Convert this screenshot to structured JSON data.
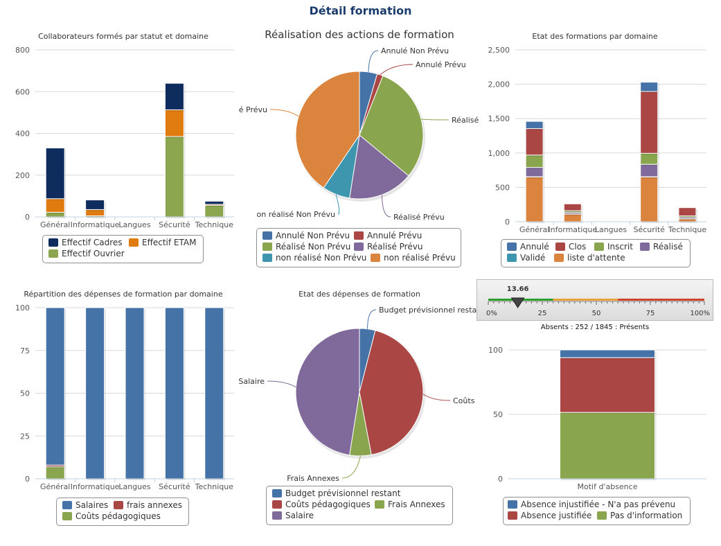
{
  "page": {
    "title": "Détail formation"
  },
  "chart_data": [
    {
      "id": "c1",
      "type": "bar",
      "stacked": true,
      "title": "Collaborateurs formés par statut et domaine",
      "categories": [
        "Général",
        "Informatique",
        "Langues",
        "Sécurité",
        "Technique"
      ],
      "ylim": [
        0,
        800
      ],
      "yticks": [
        "0",
        "200",
        "400",
        "600",
        "800"
      ],
      "grid": true,
      "legend_position": "bottom",
      "series": [
        {
          "name": "Effectif Ouvrier",
          "color": "#8ba64e",
          "values": [
            22,
            5,
            0,
            385,
            55
          ]
        },
        {
          "name": "Effectif ETAM",
          "color": "#e07b10",
          "values": [
            65,
            30,
            0,
            128,
            5
          ]
        },
        {
          "name": "Effectif Cadres",
          "color": "#0e2c5d",
          "values": [
            243,
            46,
            0,
            127,
            15
          ]
        }
      ],
      "legend": [
        "Effectif Cadres",
        "Effectif ETAM",
        "Effectif Ouvrier"
      ]
    },
    {
      "id": "c2",
      "type": "pie",
      "title": "Réalisation des actions de formation",
      "slices": [
        {
          "name": "Annulé Non Prévu",
          "label": "Annulé Non Prévu",
          "value": 4.5,
          "color": "#4572a7"
        },
        {
          "name": "Annulé Prévu",
          "label": "Annulé Prévu",
          "value": 1.5,
          "color": "#aa4643"
        },
        {
          "name": "Réalisé Non Prévu",
          "label": "Réalisé",
          "value": 30,
          "color": "#89a54e"
        },
        {
          "name": "Réalisé Prévu",
          "label": "Réalisé Prévu",
          "value": 16.5,
          "color": "#80699b"
        },
        {
          "name": "non réalisé Non Prévu",
          "label": "on réalisé Non Prévu",
          "value": 7,
          "color": "#3d96ae"
        },
        {
          "name": "non réalisé Prévu",
          "label": "é Prévu",
          "value": 40.5,
          "color": "#db843d"
        }
      ],
      "legend": [
        "Annulé Non Prévu",
        "Annulé Prévu",
        "Réalisé Non Prévu",
        "Réalisé Prévu",
        "non réalisé Non Prévu",
        "non réalisé Prévu"
      ]
    },
    {
      "id": "c3",
      "type": "bar",
      "stacked": true,
      "title": "Etat des formations par domaine",
      "categories": [
        "Général",
        "Informatique",
        "Langues",
        "Sécurité",
        "Technique"
      ],
      "ylim": [
        0,
        2500
      ],
      "yticks": [
        "0",
        "500",
        "1,000",
        "1,500",
        "2,000",
        "2,500"
      ],
      "grid": true,
      "legend_position": "bottom",
      "series": [
        {
          "name": "liste d'attente",
          "color": "#db843d",
          "values": [
            650,
            110,
            0,
            650,
            40
          ]
        },
        {
          "name": "Validé",
          "color": "#3d96ae",
          "values": [
            5,
            5,
            0,
            5,
            5
          ]
        },
        {
          "name": "Réalisé",
          "color": "#80699b",
          "values": [
            135,
            20,
            0,
            180,
            20
          ]
        },
        {
          "name": "Inscrit",
          "color": "#89a54e",
          "values": [
            180,
            25,
            0,
            160,
            20
          ]
        },
        {
          "name": "Clos",
          "color": "#aa4643",
          "values": [
            385,
            100,
            0,
            900,
            120
          ]
        },
        {
          "name": "Annulé",
          "color": "#4572a7",
          "values": [
            105,
            0,
            0,
            135,
            0
          ]
        }
      ],
      "legend": [
        "Annulé",
        "Clos",
        "Inscrit",
        "Réalisé",
        "Validé",
        "liste d'attente"
      ]
    },
    {
      "id": "c4",
      "type": "bar",
      "stacked": true,
      "title": "Répartition des dépenses de formation par domaine",
      "categories": [
        "Général",
        "Informatique",
        "Langues",
        "Sécurité",
        "Technique"
      ],
      "ylim": [
        0,
        100
      ],
      "yticks": [
        "0",
        "25",
        "50",
        "75",
        "100"
      ],
      "grid": true,
      "legend_position": "bottom",
      "series": [
        {
          "name": "Coûts pédagogiques",
          "color": "#89a54e",
          "values": [
            7,
            0,
            0,
            0,
            0
          ]
        },
        {
          "name": "frais annexes",
          "color": "#aa4643",
          "values": [
            1,
            0,
            0,
            0,
            0
          ]
        },
        {
          "name": "Salaires",
          "color": "#4572a7",
          "values": [
            92,
            100,
            100,
            100,
            100
          ]
        }
      ],
      "legend": [
        "Salaires",
        "frais annexes",
        "Coûts pédagogiques"
      ]
    },
    {
      "id": "c5",
      "type": "pie",
      "title": "Etat des dépenses de formation",
      "slices": [
        {
          "name": "Budget prévisionnel restant",
          "label": "Budget prévisionnel restan",
          "value": 4,
          "color": "#4572a7"
        },
        {
          "name": "Coûts",
          "label": "Coûts",
          "value": 43,
          "color": "#aa4643"
        },
        {
          "name": "Frais Annexes",
          "label": "Frais Annexes",
          "value": 5.5,
          "color": "#89a54e"
        },
        {
          "name": "Salaire",
          "label": "Salaire",
          "value": 47.5,
          "color": "#80699b"
        }
      ],
      "legend": [
        "Budget prévisionnel restant",
        "Coûts pédagogiques",
        "Frais Annexes",
        "Salaire"
      ]
    },
    {
      "id": "c6",
      "type": "gauge",
      "value": 13.66,
      "value_label": "13.66",
      "min": 0,
      "max": 100,
      "ticks": [
        "0%",
        "25",
        "50",
        "75",
        "100%"
      ],
      "bands": [
        {
          "from": 0,
          "to": 30,
          "color": "#2ca02c"
        },
        {
          "from": 30,
          "to": 60,
          "color": "#e8a33a"
        },
        {
          "from": 60,
          "to": 100,
          "color": "#d0442a"
        }
      ],
      "caption": "Absents : 252 / 1845 : Présents"
    },
    {
      "id": "c7",
      "type": "bar",
      "stacked": true,
      "title": "",
      "categories": [
        "Motif d'absence"
      ],
      "ylim": [
        0,
        100
      ],
      "yticks": [
        "0",
        "50",
        "100"
      ],
      "grid": true,
      "legend_position": "bottom",
      "series": [
        {
          "name": "Pas d'information",
          "color": "#89a54e",
          "values": [
            51.5
          ]
        },
        {
          "name": "Absence justifiée",
          "color": "#aa4643",
          "values": [
            42.5
          ]
        },
        {
          "name": "Absence injustifiée - N'a pas prévenu",
          "color": "#4572a7",
          "values": [
            6
          ]
        }
      ],
      "legend": [
        "Absence injustifiée - N'a pas prévenu",
        "Absence justifiée",
        "Pas d'information"
      ]
    }
  ]
}
